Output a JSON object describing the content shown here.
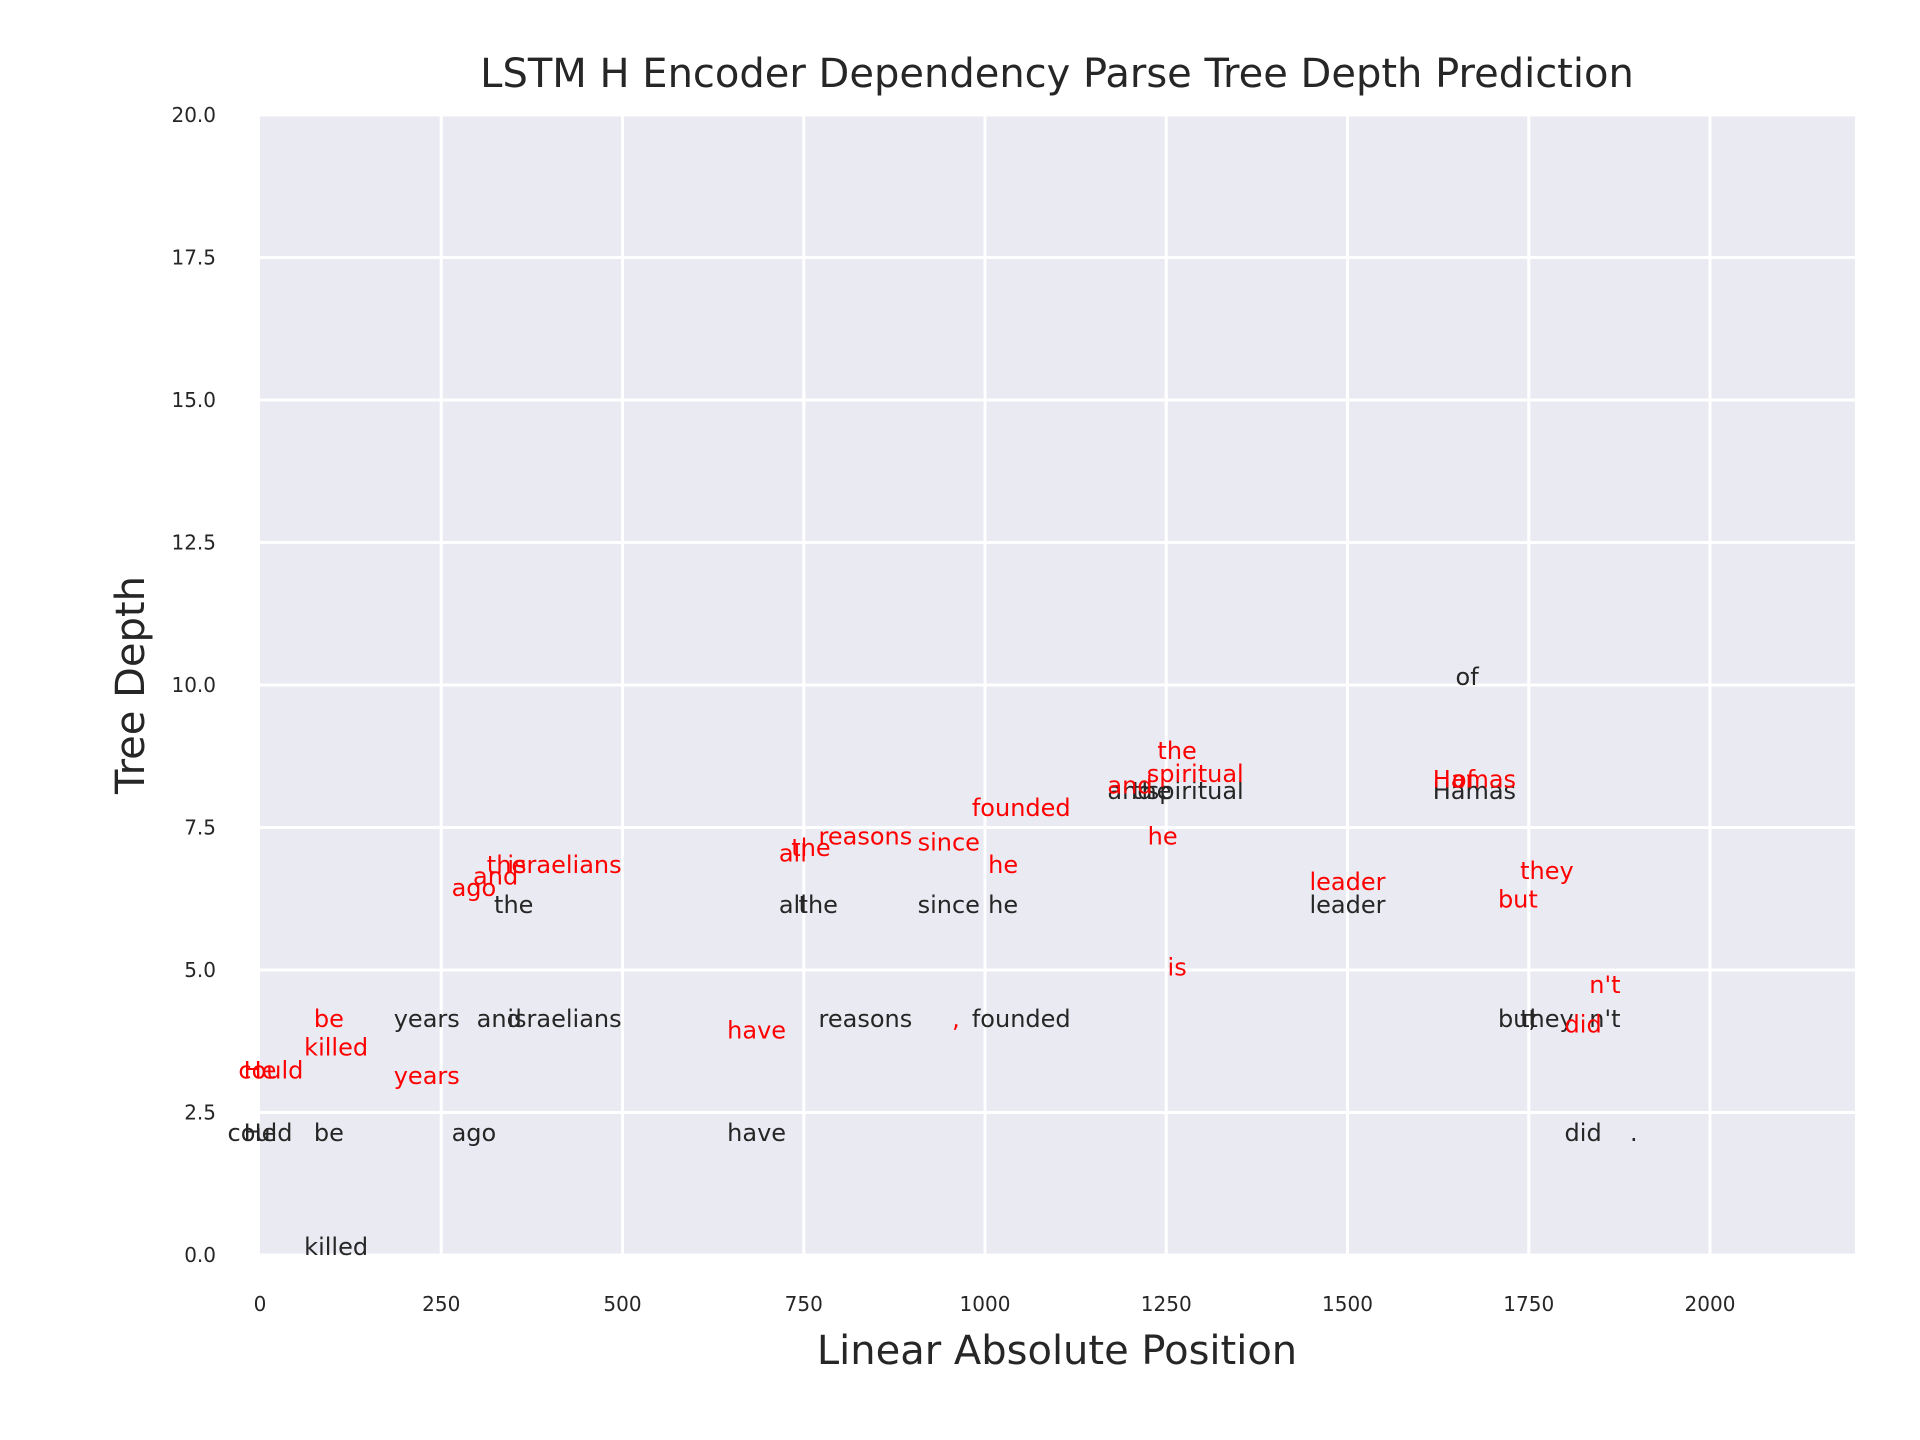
{
  "chart_data": {
    "type": "scatter",
    "title": "LSTM H Encoder Dependency Parse Tree Depth Prediction",
    "xlabel": "Linear Absolute Position",
    "ylabel": "Tree Depth",
    "xlim": [
      0,
      2200
    ],
    "ylim": [
      0,
      20
    ],
    "xticks": [
      0,
      250,
      500,
      750,
      1000,
      1250,
      1500,
      1750,
      2000
    ],
    "yticks": [
      0.0,
      2.5,
      5.0,
      7.5,
      10.0,
      12.5,
      15.0,
      17.5,
      20.0
    ],
    "xtick_labels": [
      "0",
      "250",
      "500",
      "750",
      "1000",
      "1250",
      "1500",
      "1750",
      "2000"
    ],
    "ytick_labels": [
      "0.0",
      "2.5",
      "5.0",
      "7.5",
      "10.0",
      "12.5",
      "15.0",
      "17.5",
      "20.0"
    ],
    "grid": true,
    "series": [
      {
        "color": "#262626",
        "points": [
          {
            "x": 0,
            "y": 2,
            "label": "He"
          },
          {
            "x": 0,
            "y": 2,
            "label": "could"
          },
          {
            "x": 95,
            "y": 2,
            "label": "be"
          },
          {
            "x": 105,
            "y": 0,
            "label": "killed"
          },
          {
            "x": 230,
            "y": 4,
            "label": "years"
          },
          {
            "x": 295,
            "y": 2,
            "label": "ago"
          },
          {
            "x": 330,
            "y": 4,
            "label": "and"
          },
          {
            "x": 350,
            "y": 6,
            "label": "the"
          },
          {
            "x": 420,
            "y": 4,
            "label": "israelians"
          },
          {
            "x": 685,
            "y": 2,
            "label": "have"
          },
          {
            "x": 735,
            "y": 6,
            "label": "all"
          },
          {
            "x": 770,
            "y": 6,
            "label": "the"
          },
          {
            "x": 835,
            "y": 4,
            "label": "reasons"
          },
          {
            "x": 950,
            "y": 6,
            "label": "since"
          },
          {
            "x": 1025,
            "y": 6,
            "label": "he"
          },
          {
            "x": 1050,
            "y": 4,
            "label": "founded"
          },
          {
            "x": 1200,
            "y": 8,
            "label": "and"
          },
          {
            "x": 1230,
            "y": 8,
            "label": "the"
          },
          {
            "x": 1290,
            "y": 8,
            "label": "spiritual"
          },
          {
            "x": 1500,
            "y": 6,
            "label": "leader"
          },
          {
            "x": 1665,
            "y": 10,
            "label": "of"
          },
          {
            "x": 1675,
            "y": 8,
            "label": "Hamas"
          },
          {
            "x": 1735,
            "y": 4,
            "label": "but"
          },
          {
            "x": 1755,
            "y": 4,
            "label": ","
          },
          {
            "x": 1775,
            "y": 4,
            "label": "they"
          },
          {
            "x": 1825,
            "y": 2,
            "label": "did"
          },
          {
            "x": 1855,
            "y": 4,
            "label": "n't"
          },
          {
            "x": 1895,
            "y": 2,
            "label": "."
          }
        ]
      },
      {
        "color": "#ff0000",
        "points": [
          {
            "x": 0,
            "y": 3.1,
            "label": "He"
          },
          {
            "x": 15,
            "y": 3.1,
            "label": "could"
          },
          {
            "x": 95,
            "y": 4.0,
            "label": "be"
          },
          {
            "x": 105,
            "y": 3.5,
            "label": "killed"
          },
          {
            "x": 230,
            "y": 3.0,
            "label": "years"
          },
          {
            "x": 295,
            "y": 6.3,
            "label": "ago"
          },
          {
            "x": 325,
            "y": 6.5,
            "label": "and"
          },
          {
            "x": 340,
            "y": 6.7,
            "label": "the"
          },
          {
            "x": 420,
            "y": 6.7,
            "label": "israelians"
          },
          {
            "x": 685,
            "y": 3.8,
            "label": "have"
          },
          {
            "x": 735,
            "y": 6.9,
            "label": "all"
          },
          {
            "x": 760,
            "y": 7.0,
            "label": "the"
          },
          {
            "x": 835,
            "y": 7.2,
            "label": "reasons"
          },
          {
            "x": 960,
            "y": 4.0,
            "label": ","
          },
          {
            "x": 950,
            "y": 7.1,
            "label": "since"
          },
          {
            "x": 1025,
            "y": 6.7,
            "label": "he"
          },
          {
            "x": 1050,
            "y": 7.7,
            "label": "founded"
          },
          {
            "x": 1200,
            "y": 8.1,
            "label": "and"
          },
          {
            "x": 1245,
            "y": 7.2,
            "label": "he"
          },
          {
            "x": 1265,
            "y": 4.9,
            "label": "is"
          },
          {
            "x": 1265,
            "y": 8.7,
            "label": "the"
          },
          {
            "x": 1290,
            "y": 8.3,
            "label": "spiritual"
          },
          {
            "x": 1500,
            "y": 6.4,
            "label": "leader"
          },
          {
            "x": 1660,
            "y": 8.2,
            "label": "of"
          },
          {
            "x": 1675,
            "y": 8.2,
            "label": "Hamas"
          },
          {
            "x": 1735,
            "y": 6.1,
            "label": "but"
          },
          {
            "x": 1775,
            "y": 6.6,
            "label": "they"
          },
          {
            "x": 1825,
            "y": 3.9,
            "label": "did"
          },
          {
            "x": 1855,
            "y": 4.6,
            "label": "n't"
          }
        ]
      }
    ]
  }
}
